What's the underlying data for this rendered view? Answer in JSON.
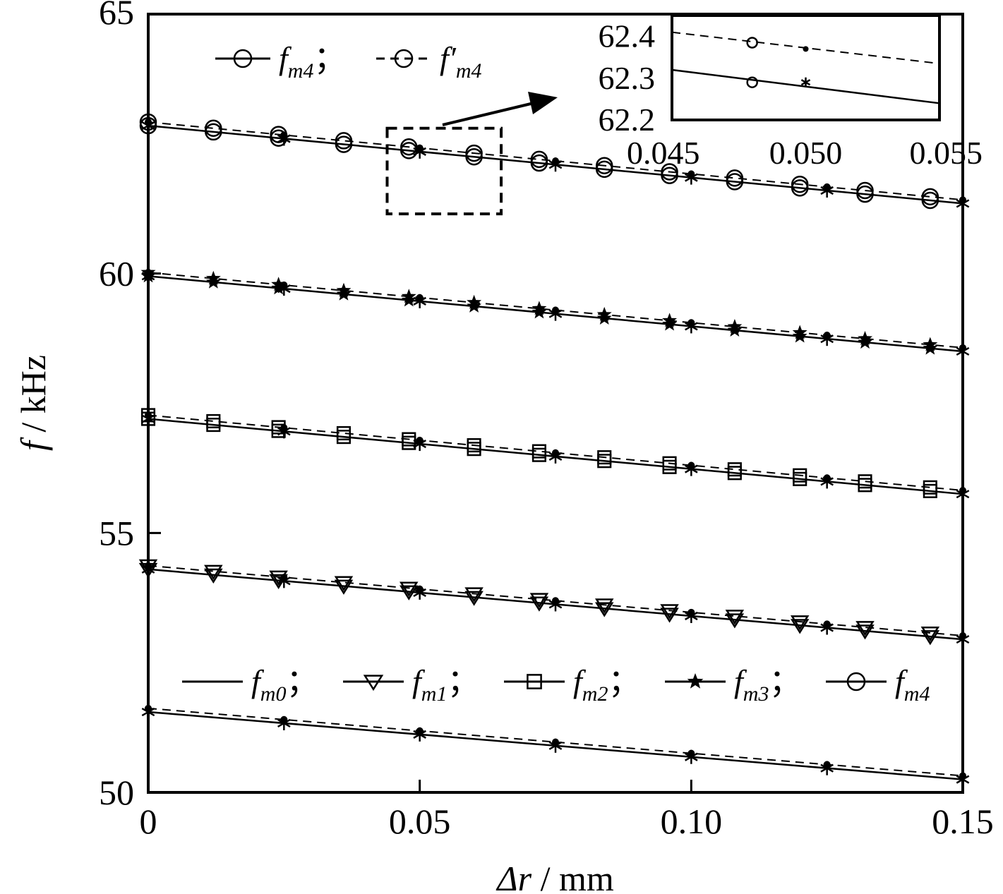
{
  "chart_data": {
    "type": "line",
    "xlabel_symbol": "Δr",
    "xlabel_unit": " / mm",
    "ylabel_symbol": "f",
    "ylabel_unit": " / kHz",
    "xlim": [
      0,
      0.15
    ],
    "ylim": [
      50,
      65
    ],
    "x_ticks": [
      {
        "value": 0,
        "label": "0"
      },
      {
        "value": 0.05,
        "label": "0.05"
      },
      {
        "value": 0.1,
        "label": "0.10"
      },
      {
        "value": 0.15,
        "label": "0.15"
      }
    ],
    "y_ticks": [
      {
        "value": 50,
        "label": "50"
      },
      {
        "value": 55,
        "label": "55"
      },
      {
        "value": 60,
        "label": "60"
      },
      {
        "value": 65,
        "label": "65"
      }
    ],
    "series": [
      {
        "name": "fm0",
        "y0": 51.55,
        "y1": 50.25,
        "marker": "none"
      },
      {
        "name": "fm1",
        "y0": 54.3,
        "y1": 52.95,
        "marker": "triangle-down"
      },
      {
        "name": "fm2",
        "y0": 57.2,
        "y1": 55.75,
        "marker": "square"
      },
      {
        "name": "fm3",
        "y0": 59.95,
        "y1": 58.5,
        "marker": "star"
      },
      {
        "name": "fm4",
        "y0": 62.85,
        "y1": 61.35,
        "marker": "circle"
      }
    ],
    "reference_offset": 0.07,
    "marker_x": [
      0,
      0.012,
      0.024,
      0.036,
      0.048,
      0.06,
      0.072,
      0.084,
      0.096,
      0.108,
      0.12,
      0.132,
      0.144
    ],
    "star_x": [
      0,
      0.025,
      0.05,
      0.075,
      0.1,
      0.125,
      0.15
    ],
    "legend_top": {
      "entries": [
        {
          "base": "f",
          "sub": "m4",
          "sep": "；"
        },
        {
          "base": "f′",
          "sub": "m4",
          "sep": ""
        }
      ]
    },
    "legend_bottom": {
      "entries": [
        {
          "base": "f",
          "sub": "m0",
          "sep": "；"
        },
        {
          "base": "f",
          "sub": "m1",
          "sep": "；"
        },
        {
          "base": "f",
          "sub": "m2",
          "sep": "；"
        },
        {
          "base": "f",
          "sub": "m3",
          "sep": "；"
        },
        {
          "base": "f",
          "sub": "m4",
          "sep": ""
        }
      ]
    },
    "zoom_box": {
      "x": [
        0.044,
        0.065
      ],
      "y": [
        61.15,
        62.8
      ]
    },
    "inset": {
      "xlim": [
        0.045,
        0.055
      ],
      "ylim": [
        62.2,
        62.45
      ],
      "x_tick_labels": [
        {
          "value": 0.045,
          "label": "0.045"
        },
        {
          "value": 0.05,
          "label": "0.050"
        },
        {
          "value": 0.055,
          "label": "0.055"
        }
      ],
      "y_tick_labels": [
        {
          "value": 62.4,
          "label": "62.4"
        },
        {
          "value": 62.3,
          "label": "62.3"
        },
        {
          "value": 62.2,
          "label": "62.2"
        }
      ],
      "dashed_line": {
        "x": [
          0.045,
          0.055
        ],
        "y": [
          62.41,
          62.335
        ]
      },
      "solid_line": {
        "x": [
          0.045,
          0.055
        ],
        "y": [
          62.32,
          62.24
        ]
      },
      "points": [
        {
          "x": 0.048,
          "y": 62.385,
          "marker": "circle"
        },
        {
          "x": 0.05,
          "y": 62.37,
          "marker": "dot"
        },
        {
          "x": 0.048,
          "y": 62.29,
          "marker": "circle"
        },
        {
          "x": 0.05,
          "y": 62.29,
          "marker": "asterisk"
        }
      ]
    }
  }
}
